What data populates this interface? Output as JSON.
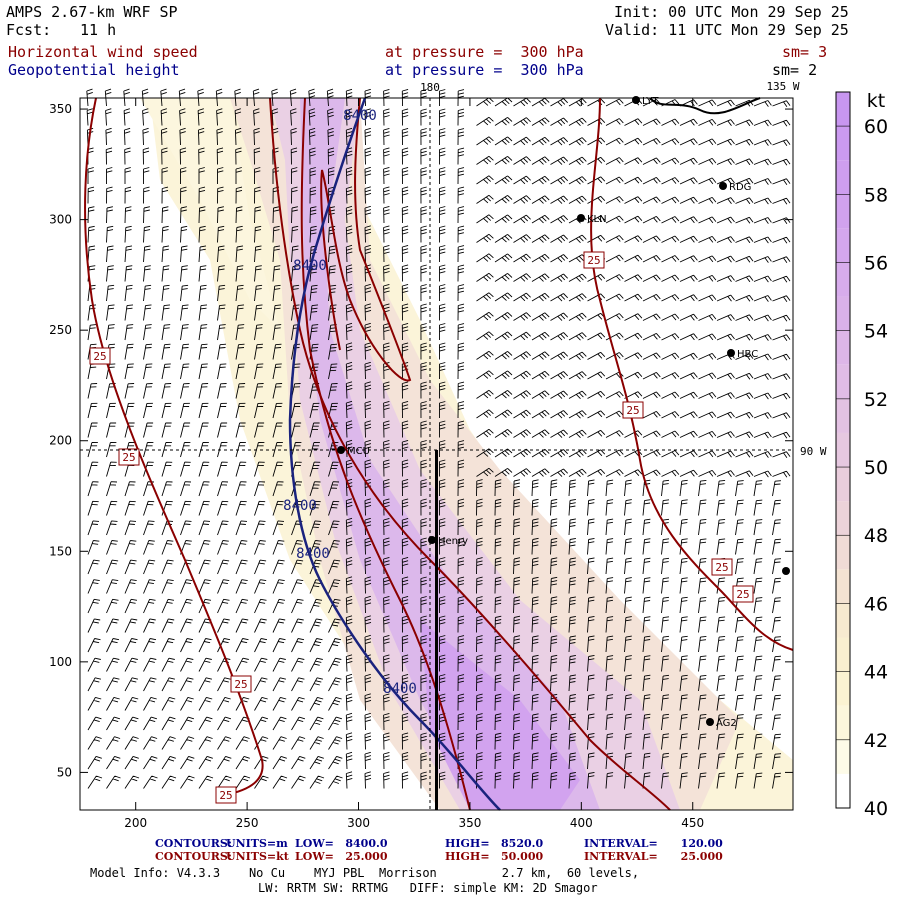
{
  "header": {
    "model": "AMPS 2.67-km WRF SP",
    "fcst_label": "Fcst:",
    "fcst_value": "11 h",
    "init": "Init: 00 UTC Mon 29 Sep 25",
    "valid": "Valid: 11 UTC Mon 29 Sep 25",
    "field1_name": "Horizontal wind speed",
    "field1_level": "at pressure =  300 hPa",
    "field1_sm": "sm= 3",
    "field2_name": "Geopotential height",
    "field2_level": "at pressure =  300 hPa",
    "field2_sm": "sm= 2"
  },
  "map_labels": {
    "meridian_180": "180",
    "meridian_135w": "135 W",
    "meridian_90w": "90 W",
    "stations": [
      "LYT",
      "RDG",
      "KLN",
      "HBC",
      "MCU",
      "Henry",
      "AG2"
    ]
  },
  "colorbar": {
    "unit": "kt",
    "ticks": [
      "60",
      "58",
      "56",
      "54",
      "52",
      "50",
      "48",
      "46",
      "44",
      "42",
      "40"
    ]
  },
  "chart_data": {
    "type": "heatmap",
    "title": "Horizontal wind speed / Geopotential height at 300 hPa",
    "x_ticks": [
      "200",
      "250",
      "300",
      "350",
      "400",
      "450"
    ],
    "y_ticks": [
      "350",
      "300",
      "250",
      "200",
      "150",
      "100",
      "50"
    ],
    "xlim": [
      175,
      495
    ],
    "ylim": [
      33,
      355
    ],
    "height_contour_labels": [
      "8400",
      "8400",
      "8400",
      "8400",
      "8400"
    ],
    "speed_contour_labels": [
      "25",
      "25",
      "25",
      "25",
      "25",
      "25",
      "25",
      "25"
    ],
    "colorbar_range_kt": [
      40,
      61
    ],
    "vertical_cross_section_x": 335
  },
  "footer": {
    "contours1_label": "CONTOURS:",
    "contours1_units": "UNITS=m",
    "contours1_low": "LOW=   8400.0",
    "contours1_high": "HIGH=   8520.0",
    "contours1_interval": "INTERVAL=      120.00",
    "contours2_label": "CONTOURS:",
    "contours2_units": "UNITS=kt",
    "contours2_low": "LOW=   25.000",
    "contours2_high": "HIGH=   50.000",
    "contours2_interval": "INTERVAL=      25.000",
    "model_info": "Model Info: V4.3.3    No Cu    MYJ PBL  Morrison         2.7 km,  60 levels,",
    "model_info2": "LW: RRTM SW: RRTMG   DIFF: simple KM: 2D Smagor"
  }
}
